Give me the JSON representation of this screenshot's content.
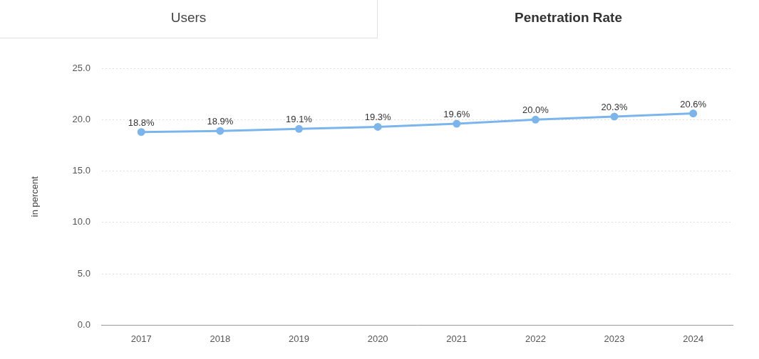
{
  "tabs": [
    "Users",
    "Penetration Rate"
  ],
  "chart_data": {
    "type": "line",
    "y_label": "in percent",
    "categories": [
      "2017",
      "2018",
      "2019",
      "2020",
      "2021",
      "2022",
      "2023",
      "2024"
    ],
    "values": [
      18.8,
      18.9,
      19.1,
      19.3,
      19.6,
      20.0,
      20.3,
      20.6
    ],
    "value_labels": [
      "18.8%",
      "18.9%",
      "19.1%",
      "19.3%",
      "19.6%",
      "20.0%",
      "20.3%",
      "20.6%"
    ],
    "color": "#7cb5ec",
    "marker": "circle",
    "ylim": [
      0,
      25
    ],
    "yticks": [
      {
        "value": 0,
        "label": "0.0"
      },
      {
        "value": 5,
        "label": "5.0"
      },
      {
        "value": 10,
        "label": "10.0"
      },
      {
        "value": 15,
        "label": "15.0"
      },
      {
        "value": 20,
        "label": "20.0"
      },
      {
        "value": 25,
        "label": "25.0"
      }
    ],
    "grid": true,
    "data_labels": true
  }
}
